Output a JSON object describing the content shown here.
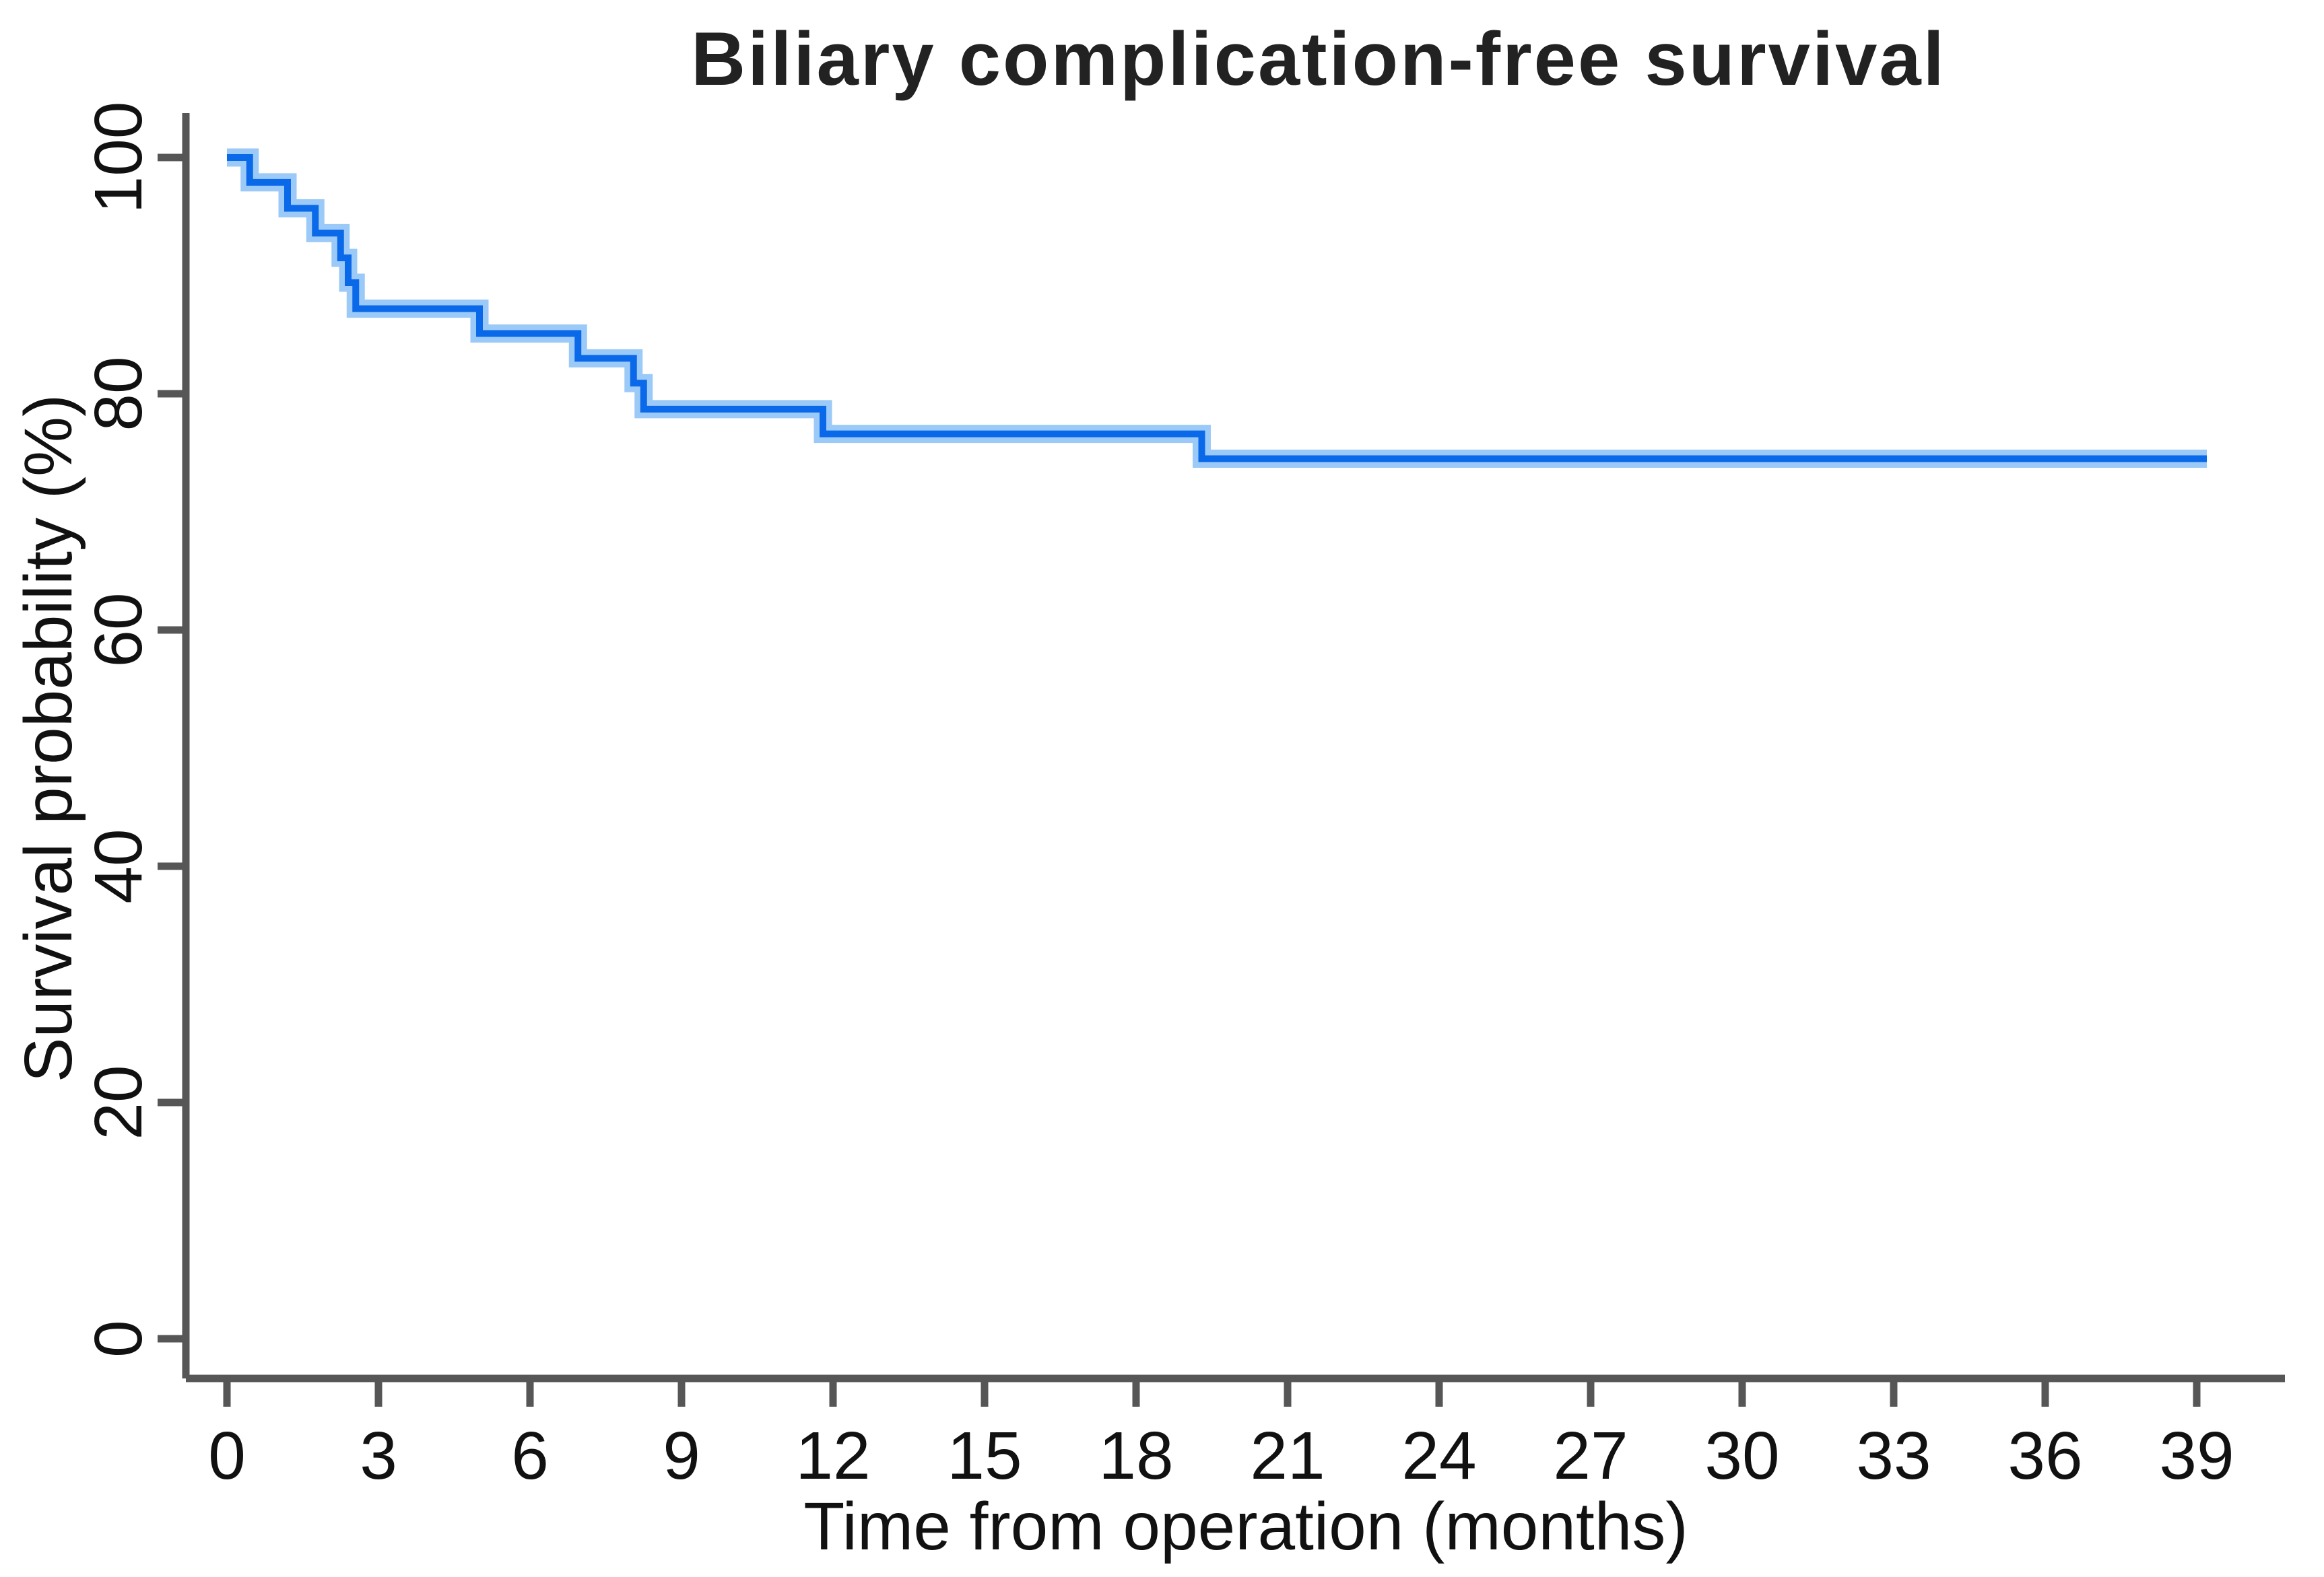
{
  "page": {
    "background": "#ffffff"
  },
  "chart_data": {
    "type": "step",
    "title": "Biliary complication-free survival",
    "xlabel": "Time from operation (months)",
    "ylabel": "Survival probability (%)",
    "xlim": [
      0,
      39.5
    ],
    "ylim": [
      0,
      100
    ],
    "x_ticks": [
      0,
      3,
      6,
      9,
      12,
      15,
      18,
      21,
      24,
      27,
      30,
      33,
      36,
      39
    ],
    "y_ticks": [
      0,
      20,
      40,
      60,
      80,
      100
    ],
    "grid": false,
    "legend": "none",
    "series": [
      {
        "name": "Biliary complication-free survival",
        "color": "#0a69e8",
        "halo_color": "#9ccaf8",
        "points": [
          [
            0,
            100
          ],
          [
            0.45,
            97.9
          ],
          [
            1.2,
            95.7
          ],
          [
            1.75,
            93.6
          ],
          [
            2.25,
            91.5
          ],
          [
            2.4,
            89.4
          ],
          [
            2.55,
            87.2
          ],
          [
            5.0,
            85.1
          ],
          [
            6.95,
            83.0
          ],
          [
            8.05,
            80.9
          ],
          [
            8.25,
            78.7
          ],
          [
            11.8,
            76.6
          ],
          [
            19.3,
            74.5
          ]
        ],
        "end_x": 39.2
      }
    ],
    "colors": {
      "axis": "#565656",
      "tick_label": "#111111",
      "title": "#222222"
    }
  }
}
